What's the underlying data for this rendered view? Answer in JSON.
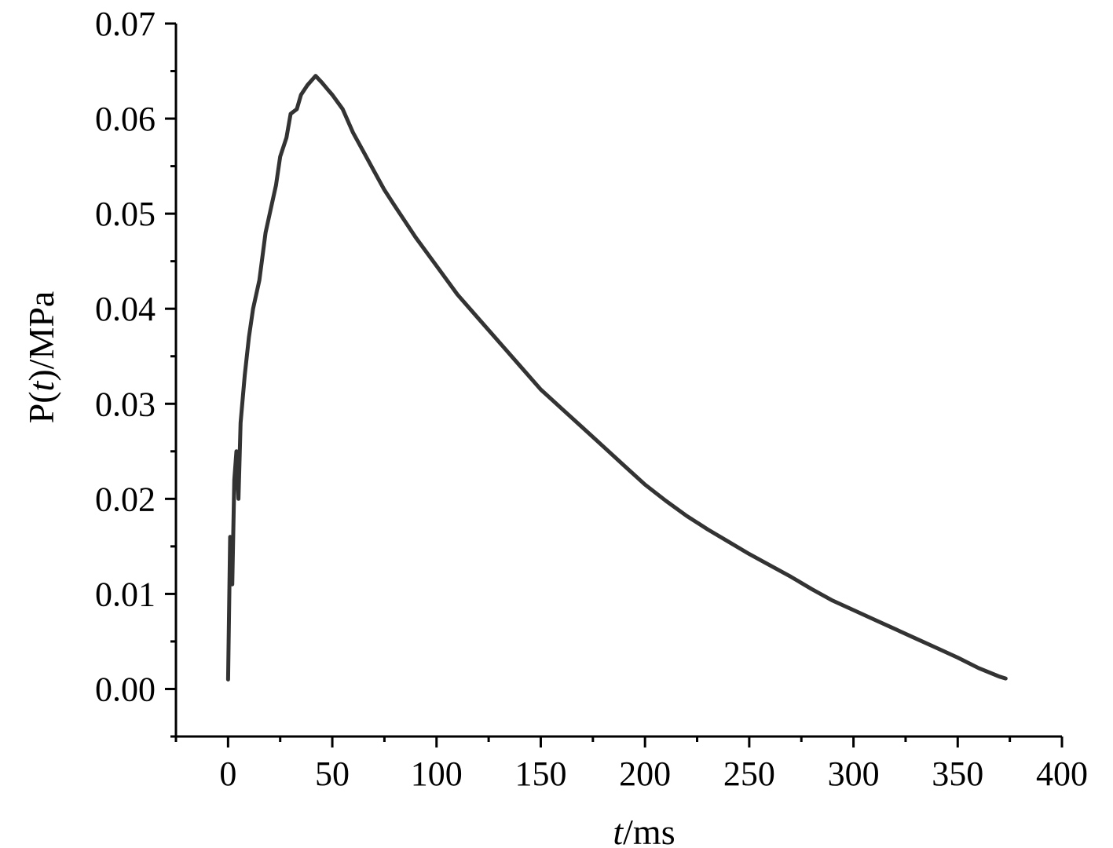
{
  "chart_data": {
    "type": "line",
    "title": "",
    "xlabel": {
      "italic": "t",
      "rest": "/ms"
    },
    "ylabel": {
      "prefix": "P(",
      "italic": "t",
      "suffix": ")/MPa"
    },
    "xlim": [
      -25,
      400
    ],
    "ylim": [
      -0.005,
      0.07
    ],
    "xticks": [
      0,
      50,
      100,
      150,
      200,
      250,
      300,
      350,
      400
    ],
    "xtick_labels": [
      "0",
      "50",
      "100",
      "150",
      "200",
      "250",
      "300",
      "350",
      "400"
    ],
    "yticks": [
      0.0,
      0.01,
      0.02,
      0.03,
      0.04,
      0.05,
      0.06,
      0.07
    ],
    "ytick_labels": [
      "0.00",
      "0.01",
      "0.02",
      "0.03",
      "0.04",
      "0.05",
      "0.06",
      "0.07"
    ],
    "grid": false,
    "line_color": "#333333",
    "series": [
      {
        "x": [
          0,
          1,
          2,
          3,
          4,
          5,
          6,
          8,
          10,
          12,
          15,
          18,
          20,
          23,
          25,
          28,
          30,
          33,
          35,
          38,
          40,
          42,
          45,
          48,
          50,
          55,
          60,
          65,
          70,
          75,
          80,
          90,
          100,
          110,
          120,
          130,
          140,
          150,
          160,
          170,
          180,
          190,
          200,
          210,
          220,
          230,
          240,
          250,
          260,
          270,
          280,
          290,
          300,
          310,
          320,
          330,
          340,
          350,
          360,
          370,
          373
        ],
        "y": [
          0.001,
          0.016,
          0.011,
          0.022,
          0.025,
          0.02,
          0.028,
          0.033,
          0.037,
          0.04,
          0.043,
          0.048,
          0.05,
          0.053,
          0.056,
          0.058,
          0.0605,
          0.061,
          0.0625,
          0.0635,
          0.064,
          0.0645,
          0.0638,
          0.063,
          0.0625,
          0.061,
          0.0585,
          0.0565,
          0.0545,
          0.0525,
          0.0508,
          0.0475,
          0.0445,
          0.0415,
          0.039,
          0.0365,
          0.034,
          0.0315,
          0.0295,
          0.0275,
          0.0255,
          0.0235,
          0.0215,
          0.0198,
          0.0182,
          0.0168,
          0.0155,
          0.0142,
          0.013,
          0.0118,
          0.0105,
          0.0093,
          0.0083,
          0.0073,
          0.0063,
          0.0053,
          0.0043,
          0.0033,
          0.0022,
          0.0013,
          0.0011
        ]
      }
    ]
  }
}
